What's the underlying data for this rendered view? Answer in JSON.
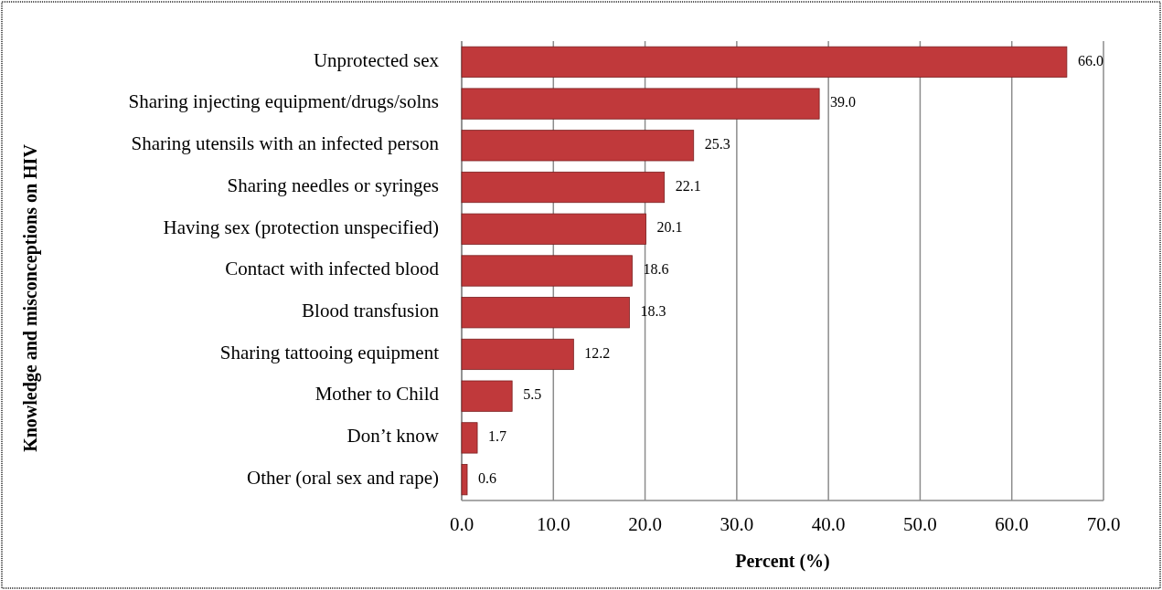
{
  "chart_data": {
    "type": "bar",
    "orientation": "horizontal",
    "xlabel": "Percent (%)",
    "ylabel": "Knowledge and misconceptions on HIV",
    "categories": [
      "Unprotected sex",
      "Sharing injecting equipment/drugs/solns",
      "Sharing utensils with an infected person",
      "Sharing needles or syringes",
      "Having sex (protection unspecified)",
      "Contact with infected blood",
      "Blood transfusion",
      "Sharing tattooing equipment",
      "Mother to Child",
      "Don’t know",
      "Other (oral sex and rape)"
    ],
    "values": [
      66.0,
      39.0,
      25.3,
      22.1,
      20.1,
      18.6,
      18.3,
      12.2,
      5.5,
      1.7,
      0.6
    ],
    "value_labels": [
      "66.0",
      "39.0",
      "25.3",
      "22.1",
      "20.1",
      "18.6",
      "18.3",
      "12.2",
      "5.5",
      "1.7",
      "0.6"
    ],
    "color": "#c0393b",
    "xlim": [
      0,
      70
    ],
    "xticks": [
      {
        "value": 0,
        "label": "0.0"
      },
      {
        "value": 10,
        "label": "10.0"
      },
      {
        "value": 20,
        "label": "20.0"
      },
      {
        "value": 30,
        "label": "30.0"
      },
      {
        "value": 40,
        "label": "40.0"
      },
      {
        "value": 50,
        "label": "50.0"
      },
      {
        "value": 60,
        "label": "60.0"
      },
      {
        "value": 70,
        "label": "70.0"
      }
    ],
    "grid": "x"
  }
}
